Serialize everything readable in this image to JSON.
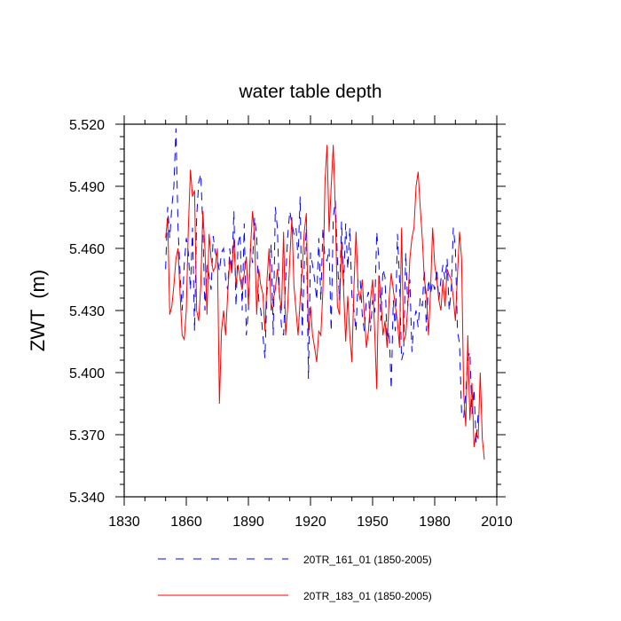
{
  "chart_data": {
    "type": "line",
    "title": "water table depth",
    "xlabel": "",
    "ylabel": "ZWT  (m)",
    "xlim": [
      1830,
      2010
    ],
    "ylim": [
      5.34,
      5.52
    ],
    "xticks": [
      1830,
      1860,
      1890,
      1920,
      1950,
      1980,
      2010
    ],
    "yticks": [
      5.34,
      5.37,
      5.4,
      5.43,
      5.46,
      5.49,
      5.52
    ],
    "xtick_labels": [
      "1830",
      "1860",
      "1890",
      "1920",
      "1950",
      "1980",
      "2010"
    ],
    "ytick_labels": [
      "5.340",
      "5.370",
      "5.400",
      "5.430",
      "5.460",
      "5.490",
      "5.520"
    ],
    "series": [
      {
        "name": "20TR_161_01 (1850-2005)",
        "color": "#0000ff",
        "dash": "dashed",
        "x_start": 1850,
        "values": [
          5.45,
          5.48,
          5.465,
          5.48,
          5.49,
          5.518,
          5.47,
          5.448,
          5.43,
          5.452,
          5.465,
          5.458,
          5.44,
          5.47,
          5.42,
          5.475,
          5.492,
          5.496,
          5.47,
          5.43,
          5.452,
          5.447,
          5.44,
          5.466,
          5.458,
          5.455,
          5.449,
          5.458,
          5.46,
          5.445,
          5.44,
          5.46,
          5.449,
          5.478,
          5.432,
          5.462,
          5.467,
          5.43,
          5.472,
          5.418,
          5.43,
          5.46,
          5.453,
          5.475,
          5.466,
          5.435,
          5.43,
          5.418,
          5.407,
          5.44,
          5.445,
          5.462,
          5.418,
          5.48,
          5.47,
          5.438,
          5.422,
          5.418,
          5.445,
          5.466,
          5.478,
          5.472,
          5.467,
          5.47,
          5.455,
          5.485,
          5.418,
          5.452,
          5.47,
          5.397,
          5.458,
          5.452,
          5.445,
          5.435,
          5.465,
          5.435,
          5.47,
          5.455,
          5.454,
          5.46,
          5.42,
          5.475,
          5.483,
          5.455,
          5.435,
          5.473,
          5.442,
          5.472,
          5.45,
          5.47,
          5.437,
          5.43,
          5.42,
          5.446,
          5.445,
          5.428,
          5.42,
          5.435,
          5.439,
          5.42,
          5.435,
          5.429,
          5.468,
          5.455,
          5.425,
          5.45,
          5.446,
          5.415,
          5.42,
          5.392,
          5.435,
          5.42,
          5.467,
          5.445,
          5.406,
          5.41,
          5.458,
          5.432,
          5.445,
          5.41,
          5.425,
          5.43,
          5.422,
          5.436,
          5.432,
          5.45,
          5.42,
          5.445,
          5.438,
          5.444,
          5.44,
          5.45,
          5.435,
          5.445,
          5.452,
          5.445,
          5.455,
          5.43,
          5.44,
          5.47,
          5.46,
          5.42,
          5.414,
          5.38,
          5.378,
          5.39,
          5.407,
          5.41,
          5.38,
          5.392,
          5.366,
          5.38
        ]
      },
      {
        "name": "20TR_183_01 (1850-2005)",
        "color": "#ff0000",
        "dash": "solid",
        "x_start": 1850,
        "values": [
          5.465,
          5.475,
          5.428,
          5.432,
          5.442,
          5.455,
          5.46,
          5.438,
          5.418,
          5.416,
          5.43,
          5.47,
          5.498,
          5.485,
          5.488,
          5.43,
          5.425,
          5.442,
          5.478,
          5.46,
          5.428,
          5.467,
          5.455,
          5.449,
          5.451,
          5.46,
          5.385,
          5.42,
          5.43,
          5.418,
          5.438,
          5.455,
          5.448,
          5.465,
          5.442,
          5.452,
          5.445,
          5.44,
          5.448,
          5.456,
          5.432,
          5.46,
          5.478,
          5.466,
          5.428,
          5.45,
          5.442,
          5.438,
          5.42,
          5.445,
          5.46,
          5.43,
          5.435,
          5.44,
          5.45,
          5.438,
          5.43,
          5.468,
          5.418,
          5.432,
          5.455,
          5.475,
          5.442,
          5.43,
          5.418,
          5.435,
          5.45,
          5.468,
          5.477,
          5.418,
          5.432,
          5.418,
          5.412,
          5.405,
          5.42,
          5.418,
          5.44,
          5.492,
          5.51,
          5.468,
          5.49,
          5.51,
          5.478,
          5.432,
          5.428,
          5.463,
          5.44,
          5.415,
          5.437,
          5.418,
          5.405,
          5.442,
          5.468,
          5.44,
          5.435,
          5.445,
          5.428,
          5.412,
          5.42,
          5.435,
          5.445,
          5.42,
          5.392,
          5.447,
          5.437,
          5.418,
          5.425,
          5.412,
          5.436,
          5.448,
          5.44,
          5.432,
          5.425,
          5.412,
          5.47,
          5.415,
          5.418,
          5.432,
          5.455,
          5.465,
          5.47,
          5.49,
          5.497,
          5.48,
          5.465,
          5.445,
          5.438,
          5.418,
          5.44,
          5.47,
          5.452,
          5.445,
          5.435,
          5.43,
          5.445,
          5.432,
          5.45,
          5.447,
          5.445,
          5.436,
          5.425,
          5.447,
          5.468,
          5.455,
          5.39,
          5.374,
          5.418,
          5.377,
          5.395,
          5.364,
          5.371,
          5.368,
          5.4,
          5.368,
          5.358
        ]
      }
    ]
  }
}
